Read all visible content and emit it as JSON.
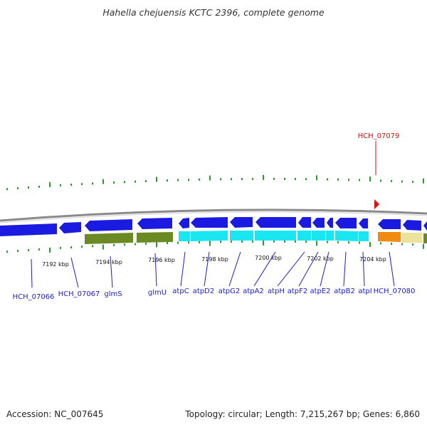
{
  "title": "Hahella chejuensis KCTC 2396, complete genome",
  "footer": {
    "accession": "Accession: NC_007645",
    "topology": "Topology: circular; Length: 7,215,267 bp; Genes: 6,860"
  },
  "colors": {
    "backbone": "#8a8a8a",
    "blue_gene": "#1a1ae0",
    "olive_gene": "#6b8a23",
    "cyan_gene": "#19e6f0",
    "orange_gene": "#f08a10",
    "khaki_gene": "#ece29a",
    "tick": "#2a9a2a",
    "label_blue": "#1b1bd1",
    "label_red": "#cc1111"
  },
  "scale_labels": [
    "7192 kbp",
    "7194 kbp",
    "7196 kbp",
    "7198 kbp",
    "7200 kbp",
    "7202 kbp",
    "7204 kbp"
  ],
  "gene_labels": [
    "HCH_07066",
    "HCH_07067",
    "glmS",
    "glmU",
    "atpC",
    "atpD2",
    "atpG2",
    "atpA2",
    "atpH",
    "atpF2",
    "atpE2",
    "atpB2",
    "atpI",
    "HCH_07080"
  ],
  "highlight_label": "HCH_07079"
}
